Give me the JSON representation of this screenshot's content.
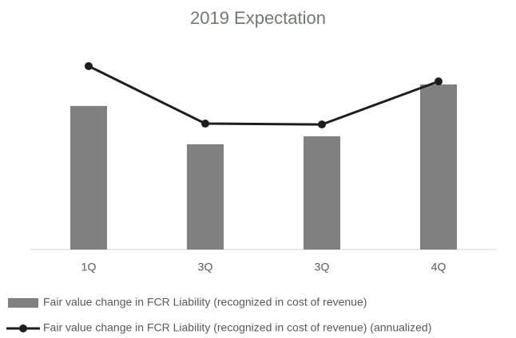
{
  "chart_data": {
    "type": "combo",
    "title": "2019 Expectation",
    "categories": [
      "1Q",
      "3Q",
      "3Q",
      "4Q"
    ],
    "series": [
      {
        "name": "Fair value change in FCR Liability (recognized in cost of revenue)",
        "type": "bar",
        "color": "#808080",
        "values": [
          66.7,
          48.9,
          52.6,
          76.7
        ]
      },
      {
        "name": "Fair value change in FCR Liability (recognized in cost of revenue) (annualized)",
        "type": "line",
        "color": "#1e1e1e",
        "values": [
          85.2,
          58.5,
          58.1,
          78.1
        ]
      }
    ],
    "ylim": [
      0,
      100
    ]
  }
}
